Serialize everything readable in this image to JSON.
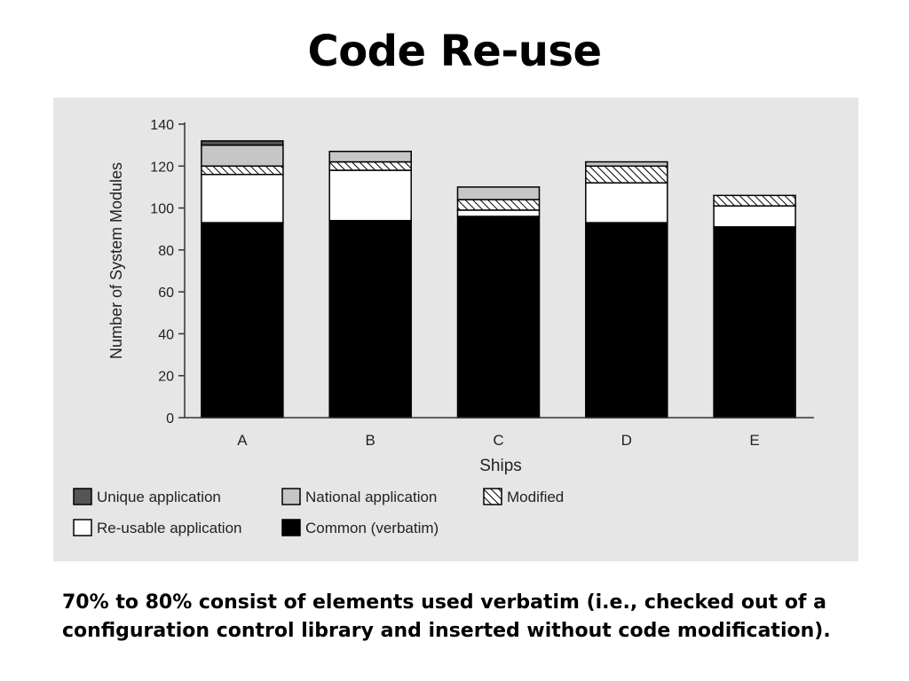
{
  "slide": {
    "title": "Code Re-use",
    "caption_line1": "70% to 80% consist of elements used verbatim (i.e., checked out of a",
    "caption_line2": "configuration control library and inserted without code modification)."
  },
  "chart_data": {
    "type": "bar",
    "stacked": true,
    "title": "",
    "xlabel": "Ships",
    "ylabel": "Number of System Modules",
    "ylim": [
      0,
      140
    ],
    "yticks": [
      0,
      20,
      40,
      60,
      80,
      100,
      120,
      140
    ],
    "grid": false,
    "legend_position": "bottom",
    "categories": [
      "A",
      "B",
      "C",
      "D",
      "E"
    ],
    "series": [
      {
        "name": "Common (verbatim)",
        "values": [
          93,
          94,
          96,
          93,
          91
        ],
        "color": "#000000",
        "pattern": "solid"
      },
      {
        "name": "Re-usable application",
        "values": [
          23,
          24,
          3,
          19,
          10
        ],
        "color": "#ffffff",
        "pattern": "solid"
      },
      {
        "name": "Modified",
        "values": [
          4,
          4,
          5,
          8,
          5
        ],
        "color": "#ffffff",
        "pattern": "hatch"
      },
      {
        "name": "National application",
        "values": [
          10,
          5,
          6,
          2,
          0
        ],
        "color": "#c6c6c6",
        "pattern": "solid"
      },
      {
        "name": "Unique application",
        "values": [
          2,
          0,
          0,
          0,
          0
        ],
        "color": "#555555",
        "pattern": "solid"
      }
    ],
    "legend_order": [
      "Unique application",
      "National application",
      "Modified",
      "Re-usable application",
      "Common (verbatim)"
    ]
  }
}
